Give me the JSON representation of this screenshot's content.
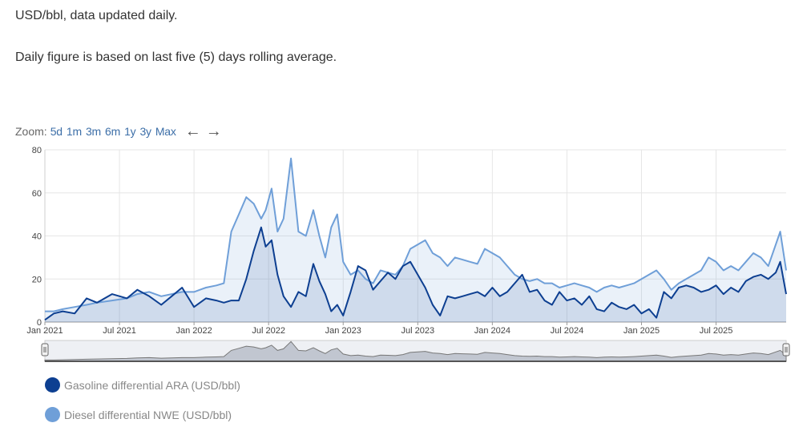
{
  "header": {
    "line1": "USD/bbl, data updated daily.",
    "line2": "Daily figure is based on last five (5) days rolling average."
  },
  "zoom": {
    "label": "Zoom:",
    "buttons": [
      "5d",
      "1m",
      "3m",
      "6m",
      "1y",
      "3y",
      "Max"
    ],
    "prev_icon": "←",
    "next_icon": "→"
  },
  "legend": [
    {
      "label": "Gasoline differential ARA (USD/bbl)",
      "color": "#0d3f91"
    },
    {
      "label": "Diesel differential NWE (USD/bbl)",
      "color": "#6f9fd8"
    }
  ],
  "chart_data": {
    "type": "area",
    "title": "",
    "xlabel": "",
    "ylabel": "",
    "ylim": [
      0,
      80
    ],
    "yticks": [
      0,
      20,
      40,
      60,
      80
    ],
    "xlim": [
      2021.0,
      2025.97
    ],
    "xticks": [
      {
        "x": 2021.0,
        "label": "Jan 2021"
      },
      {
        "x": 2021.5,
        "label": "Jul 2021"
      },
      {
        "x": 2022.0,
        "label": "Jan 2022"
      },
      {
        "x": 2022.5,
        "label": "Jul 2022"
      },
      {
        "x": 2023.0,
        "label": "Jan 2023"
      },
      {
        "x": 2023.5,
        "label": "Jul 2023"
      },
      {
        "x": 2024.0,
        "label": "Jan 2024"
      },
      {
        "x": 2024.5,
        "label": "Jul 2024"
      },
      {
        "x": 2025.0,
        "label": "Jan 2025"
      },
      {
        "x": 2025.5,
        "label": "Jul 2025"
      }
    ],
    "grid": true,
    "x": [
      2021.0,
      2021.06,
      2021.12,
      2021.2,
      2021.28,
      2021.35,
      2021.45,
      2021.55,
      2021.62,
      2021.7,
      2021.78,
      2021.85,
      2021.92,
      2022.0,
      2022.08,
      2022.15,
      2022.2,
      2022.25,
      2022.3,
      2022.35,
      2022.4,
      2022.45,
      2022.48,
      2022.52,
      2022.56,
      2022.6,
      2022.65,
      2022.7,
      2022.75,
      2022.8,
      2022.84,
      2022.88,
      2022.92,
      2022.96,
      2023.0,
      2023.05,
      2023.1,
      2023.15,
      2023.2,
      2023.25,
      2023.3,
      2023.35,
      2023.4,
      2023.45,
      2023.5,
      2023.55,
      2023.6,
      2023.65,
      2023.7,
      2023.75,
      2023.8,
      2023.85,
      2023.9,
      2023.95,
      2024.0,
      2024.05,
      2024.1,
      2024.15,
      2024.2,
      2024.25,
      2024.3,
      2024.35,
      2024.4,
      2024.45,
      2024.5,
      2024.55,
      2024.6,
      2024.65,
      2024.7,
      2024.75,
      2024.8,
      2024.85,
      2024.9,
      2024.95,
      2025.0,
      2025.05,
      2025.1,
      2025.15,
      2025.2,
      2025.25,
      2025.3,
      2025.35,
      2025.4,
      2025.45,
      2025.5,
      2025.55,
      2025.6,
      2025.65,
      2025.7,
      2025.75,
      2025.8,
      2025.85,
      2025.9,
      2025.93,
      2025.97
    ],
    "series": [
      {
        "name": "Gasoline differential ARA (USD/bbl)",
        "values": [
          1,
          4,
          5,
          4,
          11,
          9,
          13,
          11,
          15,
          12,
          8,
          12,
          16,
          7,
          11,
          10,
          9,
          10,
          10,
          20,
          33,
          44,
          35,
          38,
          22,
          12,
          7,
          14,
          12,
          27,
          19,
          13,
          5,
          8,
          3,
          14,
          26,
          24,
          15,
          19,
          23,
          20,
          26,
          28,
          22,
          16,
          8,
          3,
          12,
          11,
          12,
          13,
          14,
          12,
          16,
          12,
          14,
          18,
          22,
          14,
          15,
          10,
          8,
          14,
          10,
          11,
          8,
          12,
          6,
          5,
          9,
          7,
          6,
          8,
          4,
          6,
          2,
          14,
          11,
          16,
          17,
          16,
          14,
          15,
          17,
          13,
          16,
          14,
          19,
          21,
          22,
          20,
          23,
          28,
          13
        ]
      },
      {
        "name": "Diesel differential NWE (USD/bbl)",
        "values": [
          5,
          5,
          6,
          7,
          8,
          9,
          10,
          11,
          13,
          14,
          12,
          13,
          14,
          14,
          16,
          17,
          18,
          42,
          50,
          58,
          55,
          48,
          52,
          62,
          42,
          48,
          76,
          42,
          40,
          52,
          40,
          30,
          44,
          50,
          28,
          22,
          24,
          20,
          18,
          24,
          23,
          22,
          26,
          34,
          36,
          38,
          32,
          30,
          26,
          30,
          29,
          28,
          27,
          34,
          32,
          30,
          26,
          22,
          20,
          19,
          20,
          18,
          18,
          16,
          17,
          18,
          17,
          16,
          14,
          16,
          17,
          16,
          17,
          18,
          20,
          22,
          24,
          20,
          15,
          18,
          20,
          22,
          24,
          30,
          28,
          24,
          26,
          24,
          28,
          32,
          30,
          26,
          36,
          42,
          24
        ]
      }
    ]
  }
}
